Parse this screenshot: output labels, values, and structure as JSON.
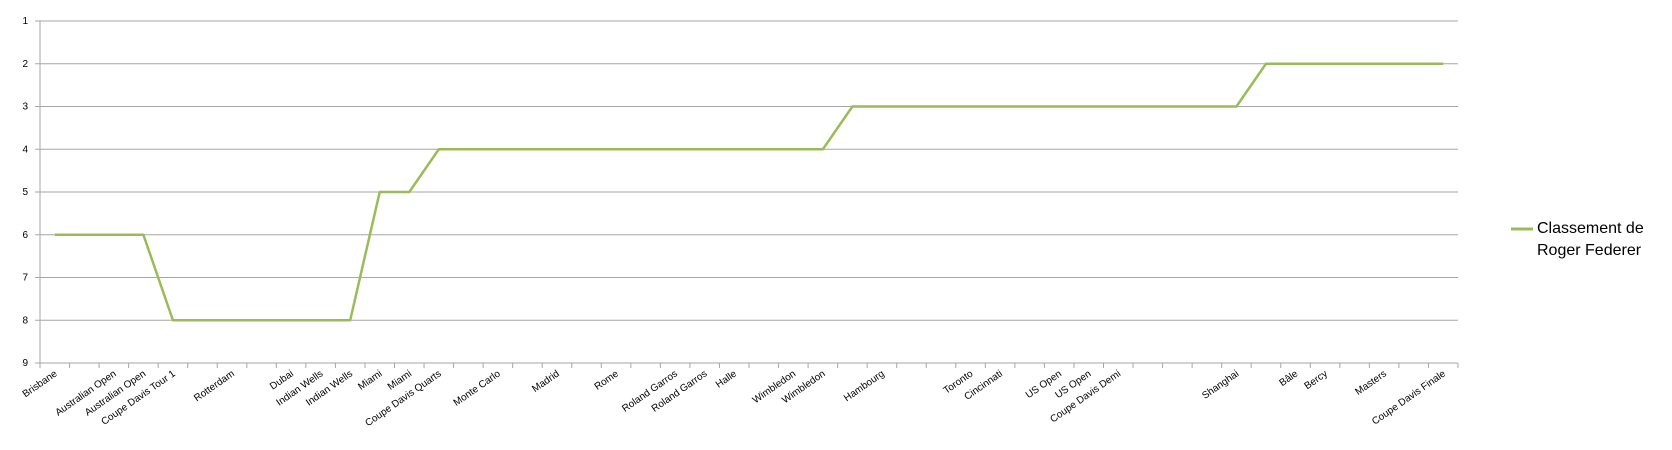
{
  "chart_data": {
    "type": "line",
    "categories": [
      "Brisbane",
      null,
      "Australian Open",
      "Australian Open",
      "Coupe Davis Tour 1",
      null,
      "Rotterdam",
      null,
      "Dubai",
      "Indian Wells",
      "Indian Wells",
      "Miami",
      "Miami",
      "Coupe Davis Quarts",
      null,
      "Monte Carlo",
      null,
      "Madrid",
      null,
      "Rome",
      null,
      "Roland Garros",
      "Roland Garros",
      "Halle",
      null,
      "Wimbledon",
      "Wimbledon",
      null,
      "Hambourg",
      null,
      null,
      "Toronto",
      "Cincinnati",
      null,
      "US Open",
      "US Open",
      "Coupe Davis Demi",
      null,
      null,
      null,
      "Shanghai",
      null,
      "Bâle",
      "Bercy",
      null,
      "Masters",
      null,
      "Coupe Davis Finale"
    ],
    "series": [
      {
        "name": "Classement de Roger Federer",
        "color": "#9bbb59",
        "values": [
          6,
          6,
          6,
          6,
          8,
          8,
          8,
          8,
          8,
          8,
          8,
          5,
          5,
          4,
          4,
          4,
          4,
          4,
          4,
          4,
          4,
          4,
          4,
          4,
          4,
          4,
          4,
          3,
          3,
          3,
          3,
          3,
          3,
          3,
          3,
          3,
          3,
          3,
          3,
          3,
          3,
          2,
          2,
          2,
          2,
          2,
          2,
          2
        ]
      }
    ],
    "ylim": [
      9,
      1
    ],
    "yticks": [
      1,
      2,
      3,
      4,
      5,
      6,
      7,
      8,
      9
    ],
    "grid": true,
    "legend": "right"
  }
}
